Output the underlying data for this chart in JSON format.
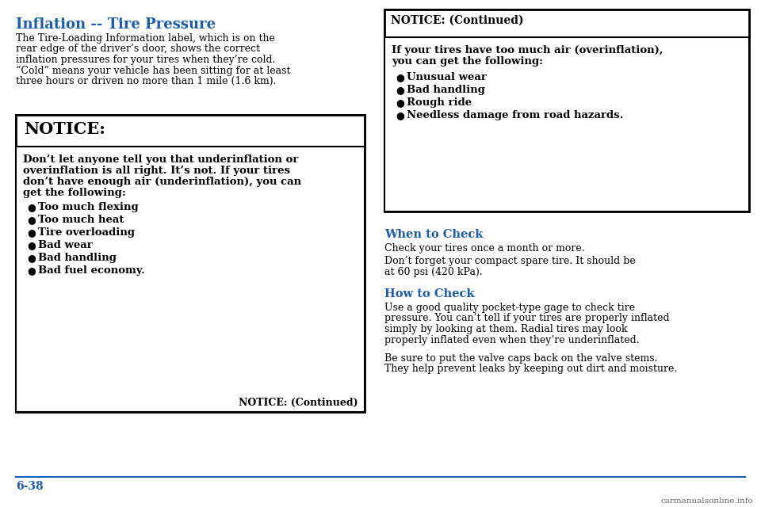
{
  "bg_color": "#ffffff",
  "title": "Inflation -- Tire Pressure",
  "title_color": "#1a5cb0",
  "intro_text_lines": [
    "The Tire-Loading Information label, which is on the",
    "rear edge of the driver’s door, shows the correct",
    "inflation pressures for your tires when they’re cold.",
    "“Cold” means your vehicle has been sitting for at least",
    "three hours or driven no more than 1 mile (1.6 km)."
  ],
  "notice_header": "NOTICE:",
  "notice_body_lines": [
    "Don’t let anyone tell you that underinflation or",
    "overinflation is all right. It’s not. If your tires",
    "don’t have enough air (underinflation), you can",
    "get the following:"
  ],
  "notice_bullets": [
    "Too much flexing",
    "Too much heat",
    "Tire overloading",
    "Bad wear",
    "Bad handling",
    "Bad fuel economy."
  ],
  "notice_continued": "NOTICE: (Continued)",
  "right_notice_header": "NOTICE: (Continued)",
  "right_notice_body_lines": [
    "If your tires have too much air (overinflation),",
    "you can get the following:"
  ],
  "right_notice_bullets": [
    "Unusual wear",
    "Bad handling",
    "Rough ride",
    "Needless damage from road hazards."
  ],
  "when_header": "When to Check",
  "when_text1": "Check your tires once a month or more.",
  "when_text2_lines": [
    "Don’t forget your compact spare tire. It should be",
    "at 60 psi (420 kPa)."
  ],
  "how_header": "How to Check",
  "how_text1_lines": [
    "Use a good quality pocket-type gage to check tire",
    "pressure. You can’t tell if your tires are properly inflated",
    "simply by looking at them. Radial tires may look",
    "properly inflated even when they’re underinflated."
  ],
  "how_text2_lines": [
    "Be sure to put the valve caps back on the valve stems.",
    "They help prevent leaks by keeping out dirt and moisture."
  ],
  "footer_text": "6-38",
  "footer_color": "#1a5cb0",
  "section_color": "#1a5cb0",
  "watermark": "carmanualsonline.info"
}
